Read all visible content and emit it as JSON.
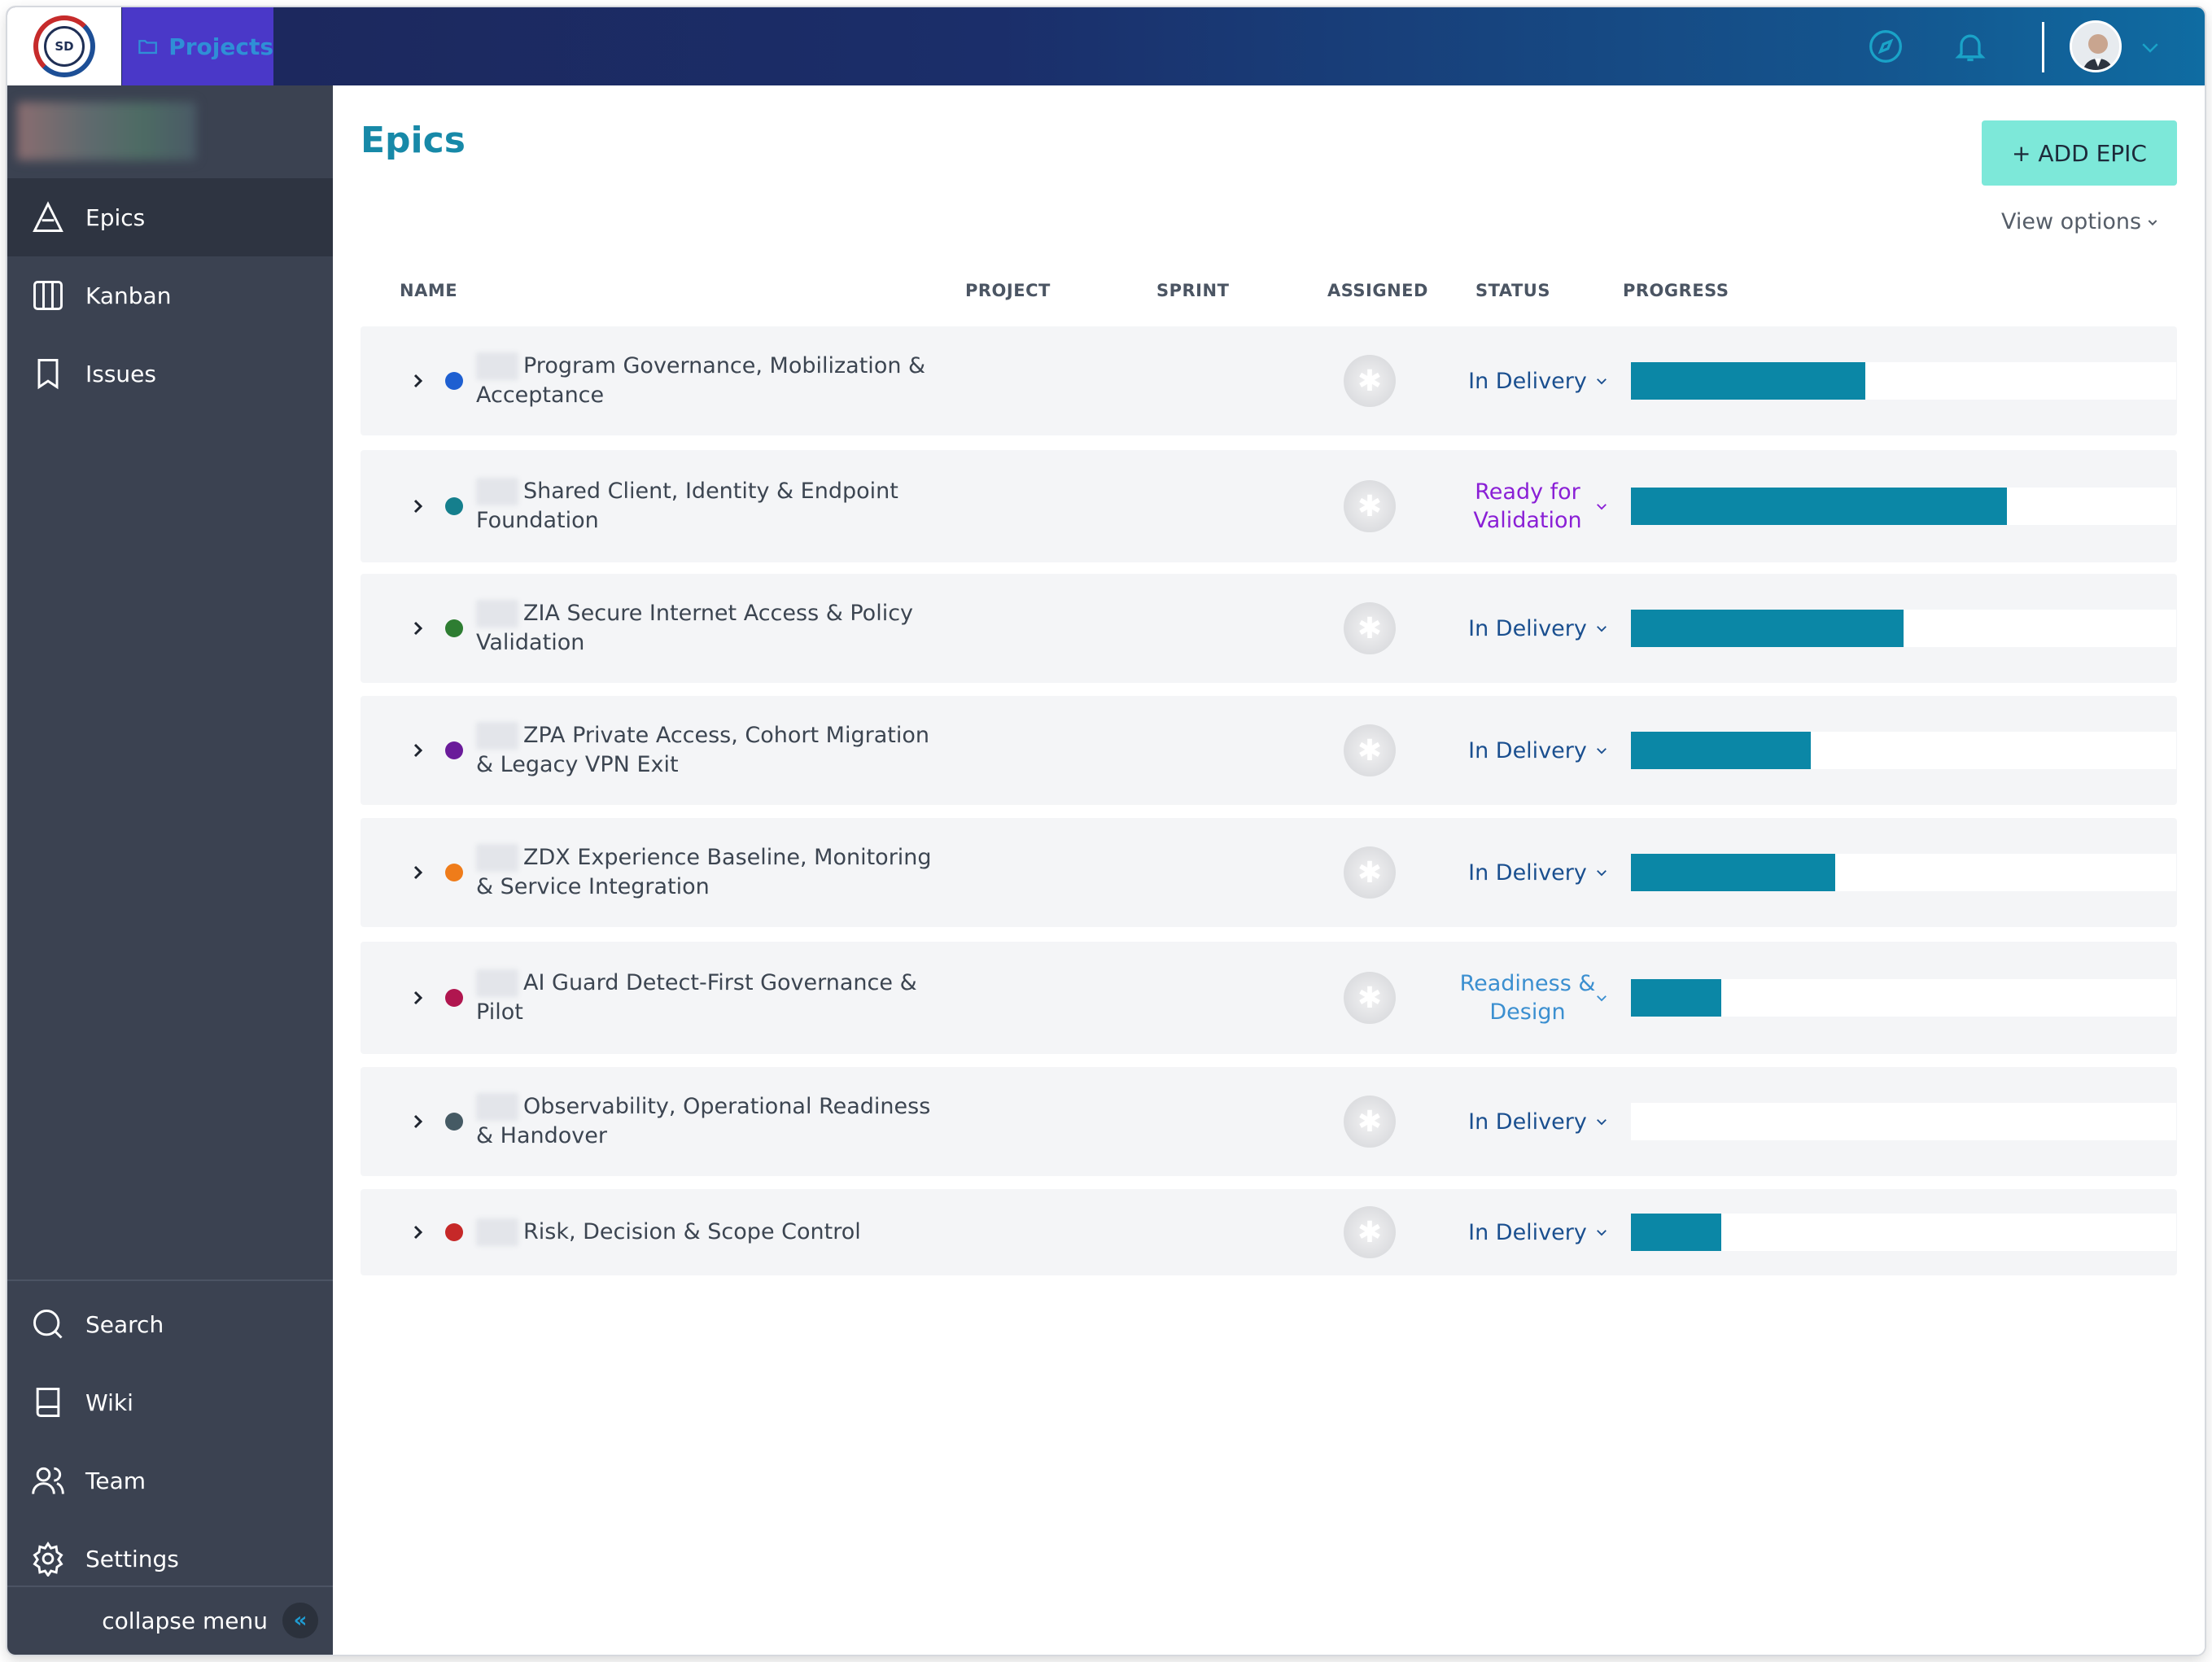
{
  "app": {
    "logo_text": "SD",
    "projects_tab_label": "Projects"
  },
  "sidebar": {
    "items": [
      {
        "label": "Epics",
        "icon": "epics-triangle-icon"
      },
      {
        "label": "Kanban",
        "icon": "kanban-columns-icon"
      },
      {
        "label": "Issues",
        "icon": "bookmark-icon"
      }
    ],
    "bottom_items": [
      {
        "label": "Search",
        "icon": "search-icon"
      },
      {
        "label": "Wiki",
        "icon": "book-icon"
      },
      {
        "label": "Team",
        "icon": "team-icon"
      },
      {
        "label": "Settings",
        "icon": "gear-icon"
      }
    ],
    "collapse_label": "collapse menu",
    "collapse_icon": "«"
  },
  "main": {
    "title": "Epics",
    "add_button": "+ ADD EPIC",
    "view_options": "View options"
  },
  "table": {
    "columns": [
      "NAME",
      "PROJECT",
      "SPRINT",
      "ASSIGNED",
      "STATUS",
      "PROGRESS"
    ],
    "rows": [
      {
        "name": "Program Governance, Mobilization & Acceptance",
        "dot_color": "#1e5fd1",
        "status": "In Delivery",
        "status_color": "#1a4f8f",
        "progress": 0.43
      },
      {
        "name": "Shared Client, Identity & Endpoint Foundation",
        "dot_color": "#157f8d",
        "status": "Ready for Validation",
        "status_color": "#8a1fd6",
        "progress": 0.69
      },
      {
        "name": "ZIA Secure Internet Access & Policy Validation",
        "dot_color": "#2e7d32",
        "status": "In Delivery",
        "status_color": "#1a4f8f",
        "progress": 0.5
      },
      {
        "name": "ZPA Private Access, Cohort Migration & Legacy VPN Exit",
        "dot_color": "#6a1b9a",
        "status": "In Delivery",
        "status_color": "#1a4f8f",
        "progress": 0.33
      },
      {
        "name": "ZDX Experience Baseline, Monitoring & Service Integration",
        "dot_color": "#ef7c1a",
        "status": "In Delivery",
        "status_color": "#1a4f8f",
        "progress": 0.375
      },
      {
        "name": "AI Guard Detect-First Governance & Pilot",
        "dot_color": "#b0164f",
        "status": "Readiness & Design",
        "status_color": "#3b8fd0",
        "progress": 0.165
      },
      {
        "name": "Observability, Operational Readiness & Handover",
        "dot_color": "#455a64",
        "status": "In Delivery",
        "status_color": "#1a4f8f",
        "progress": 0.0
      },
      {
        "name": "Risk, Decision & Scope Control",
        "dot_color": "#c62828",
        "status": "In Delivery",
        "status_color": "#1a4f8f",
        "progress": 0.165
      }
    ]
  },
  "colors": {
    "topbar_start": "#1c2659",
    "topbar_end": "#0f6ca2",
    "sidebar_bg": "#3b4251",
    "accent_title": "#1789a8",
    "add_button_bg": "#7de8d9",
    "progress_fill": "#0b87a6"
  }
}
